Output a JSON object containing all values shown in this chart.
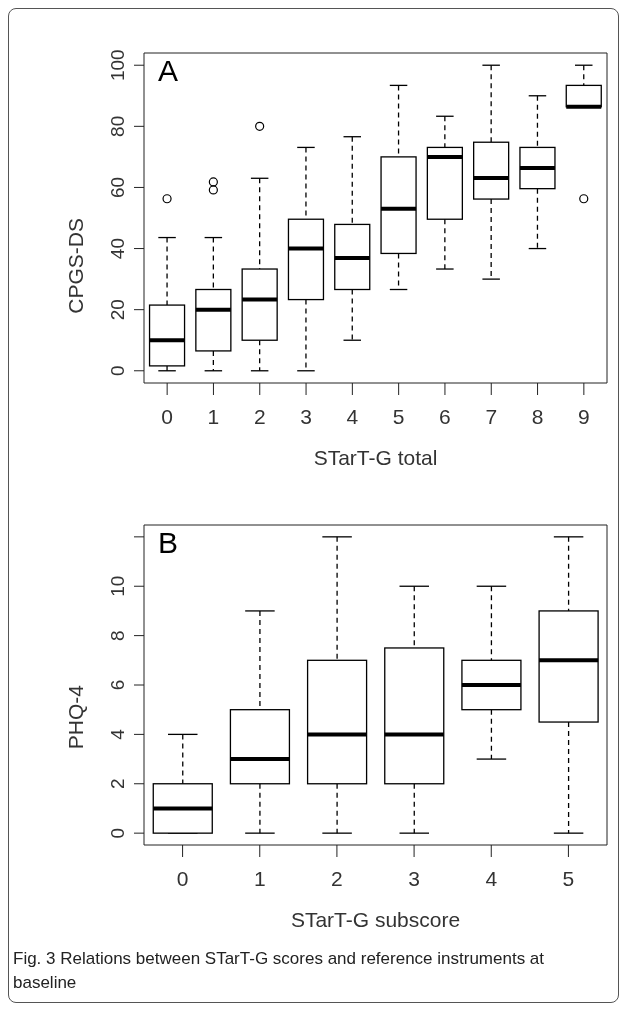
{
  "chart_data": [
    {
      "type": "box",
      "color": "#000000",
      "xlabel": "STarT-G total",
      "ylabel": "CPGS-DS",
      "categories": [
        "0",
        "1",
        "2",
        "3",
        "4",
        "5",
        "6",
        "7",
        "8",
        "9"
      ],
      "boxes": [
        {
          "low": 0,
          "q1": 1.6,
          "median": 10,
          "q3": 21.5,
          "high": 43.6,
          "outliers": [
            56.3
          ]
        },
        {
          "low": 0,
          "q1": 6.5,
          "median": 20,
          "q3": 26.6,
          "high": 43.6,
          "outliers": [
            59.2,
            61.8
          ]
        },
        {
          "low": 0,
          "q1": 10,
          "median": 23.3,
          "q3": 33.3,
          "high": 63,
          "outliers": [
            80
          ]
        },
        {
          "low": 0,
          "q1": 23.3,
          "median": 40,
          "q3": 49.6,
          "high": 73.1
        },
        {
          "low": 10,
          "q1": 26.6,
          "median": 36.9,
          "q3": 47.9,
          "high": 76.6
        },
        {
          "low": 26.6,
          "q1": 38.4,
          "median": 53,
          "q3": 70,
          "high": 93.4
        },
        {
          "low": 33.3,
          "q1": 49.6,
          "median": 70,
          "q3": 73.1,
          "high": 83.3
        },
        {
          "low": 30,
          "q1": 56.2,
          "median": 63.1,
          "q3": 74.8,
          "high": 100
        },
        {
          "low": 40,
          "q1": 59.6,
          "median": 66.4,
          "q3": 73.1,
          "high": 90
        },
        {
          "low": 86.4,
          "q1": 86.4,
          "median": 86.4,
          "q3": 93.4,
          "high": 100,
          "outliers": [
            56.3
          ]
        }
      ],
      "ylim": [
        -4,
        104
      ],
      "yticks": [
        0,
        20,
        40,
        60,
        80,
        100
      ],
      "annotations": [
        "A"
      ]
    },
    {
      "type": "box",
      "color": "#000000",
      "xlabel": "STarT-G subscore",
      "ylabel": "PHQ-4",
      "categories": [
        "0",
        "1",
        "2",
        "3",
        "4",
        "5"
      ],
      "boxes": [
        {
          "low": 0,
          "q1": 0,
          "median": 1,
          "q3": 2,
          "high": 4
        },
        {
          "low": 0,
          "q1": 2,
          "median": 3,
          "q3": 5,
          "high": 9
        },
        {
          "low": 0,
          "q1": 2,
          "median": 4,
          "q3": 7,
          "high": 12
        },
        {
          "low": 0,
          "q1": 2,
          "median": 4,
          "q3": 7.5,
          "high": 10
        },
        {
          "low": 3,
          "q1": 5,
          "median": 6,
          "q3": 7,
          "high": 10
        },
        {
          "low": 0,
          "q1": 4.5,
          "median": 7,
          "q3": 9,
          "high": 12
        }
      ],
      "ylim": [
        -0.48,
        12.48
      ],
      "yticks": [
        0,
        2,
        4,
        6,
        8,
        10,
        {
          "value": 12,
          "label": null
        }
      ],
      "annotations": [
        "B",
        "Fig. 3 Relations between STarT-G scores and reference instruments at baseline"
      ]
    }
  ]
}
